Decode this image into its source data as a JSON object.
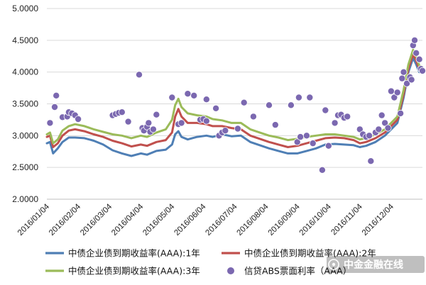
{
  "chart_data": {
    "type": "line",
    "title": "",
    "xlabel": "",
    "ylabel": "",
    "ylim": [
      2.0,
      5.0
    ],
    "y_ticks": [
      "2.0000",
      "2.5000",
      "3.0000",
      "3.5000",
      "4.0000",
      "4.5000",
      "5.0000"
    ],
    "x_ticks": [
      "2016/01/04",
      "2016/02/04",
      "2016/03/04",
      "2016/04/04",
      "2016/05/04",
      "2016/06/04",
      "2016/07/04",
      "2016/08/04",
      "2016/09/04",
      "2016/10/04",
      "2016/11/04",
      "2016/12/04"
    ],
    "x_domain": [
      0,
      12
    ],
    "grid": "horizontal",
    "legend_position": "bottom",
    "series": [
      {
        "name": "中债企业债到期收益率(AAA):1年",
        "type": "line",
        "color": "#4f7fb5",
        "points": [
          [
            0,
            2.88
          ],
          [
            0.1,
            2.9
          ],
          [
            0.2,
            2.72
          ],
          [
            0.35,
            2.8
          ],
          [
            0.5,
            2.9
          ],
          [
            0.7,
            2.97
          ],
          [
            0.9,
            2.97
          ],
          [
            1.2,
            2.96
          ],
          [
            1.5,
            2.92
          ],
          [
            1.8,
            2.86
          ],
          [
            2.1,
            2.77
          ],
          [
            2.4,
            2.72
          ],
          [
            2.7,
            2.68
          ],
          [
            3.0,
            2.72
          ],
          [
            3.2,
            2.7
          ],
          [
            3.5,
            2.76
          ],
          [
            3.8,
            2.78
          ],
          [
            4.0,
            2.86
          ],
          [
            4.1,
            3.02
          ],
          [
            4.2,
            3.07
          ],
          [
            4.3,
            2.98
          ],
          [
            4.5,
            2.94
          ],
          [
            4.8,
            2.98
          ],
          [
            5.1,
            3.0
          ],
          [
            5.3,
            2.98
          ],
          [
            5.6,
            3.02
          ],
          [
            5.9,
            2.99
          ],
          [
            6.2,
            3.0
          ],
          [
            6.5,
            2.9
          ],
          [
            6.8,
            2.85
          ],
          [
            7.1,
            2.8
          ],
          [
            7.4,
            2.76
          ],
          [
            7.7,
            2.72
          ],
          [
            8.0,
            2.72
          ],
          [
            8.3,
            2.76
          ],
          [
            8.6,
            2.8
          ],
          [
            8.9,
            2.86
          ],
          [
            9.2,
            2.87
          ],
          [
            9.5,
            2.86
          ],
          [
            9.8,
            2.85
          ],
          [
            10.0,
            2.82
          ],
          [
            10.2,
            2.84
          ],
          [
            10.5,
            2.9
          ],
          [
            10.8,
            3.0
          ],
          [
            11.0,
            3.1
          ],
          [
            11.2,
            3.2
          ],
          [
            11.4,
            3.6
          ],
          [
            11.55,
            4.0
          ],
          [
            11.7,
            4.22
          ],
          [
            11.8,
            4.12
          ],
          [
            11.9,
            4.0
          ],
          [
            12.0,
            4.02
          ]
        ]
      },
      {
        "name": "中债企业债到期收益率(AAA):2年",
        "type": "line",
        "color": "#c0504d",
        "points": [
          [
            0,
            2.98
          ],
          [
            0.1,
            3.0
          ],
          [
            0.2,
            2.82
          ],
          [
            0.35,
            2.88
          ],
          [
            0.5,
            3.0
          ],
          [
            0.7,
            3.08
          ],
          [
            0.9,
            3.1
          ],
          [
            1.2,
            3.07
          ],
          [
            1.5,
            3.02
          ],
          [
            1.8,
            2.98
          ],
          [
            2.1,
            2.92
          ],
          [
            2.4,
            2.88
          ],
          [
            2.7,
            2.83
          ],
          [
            3.0,
            2.86
          ],
          [
            3.2,
            2.84
          ],
          [
            3.5,
            2.9
          ],
          [
            3.8,
            2.93
          ],
          [
            4.0,
            3.05
          ],
          [
            4.1,
            3.3
          ],
          [
            4.2,
            3.42
          ],
          [
            4.3,
            3.3
          ],
          [
            4.5,
            3.2
          ],
          [
            4.8,
            3.2
          ],
          [
            5.1,
            3.18
          ],
          [
            5.3,
            3.15
          ],
          [
            5.6,
            3.15
          ],
          [
            5.9,
            3.12
          ],
          [
            6.2,
            3.1
          ],
          [
            6.5,
            3.0
          ],
          [
            6.8,
            2.95
          ],
          [
            7.1,
            2.9
          ],
          [
            7.4,
            2.86
          ],
          [
            7.7,
            2.82
          ],
          [
            8.0,
            2.84
          ],
          [
            8.3,
            2.88
          ],
          [
            8.6,
            2.92
          ],
          [
            8.9,
            2.96
          ],
          [
            9.2,
            2.97
          ],
          [
            9.5,
            2.96
          ],
          [
            9.8,
            2.93
          ],
          [
            10.0,
            2.88
          ],
          [
            10.2,
            2.9
          ],
          [
            10.5,
            2.96
          ],
          [
            10.8,
            3.05
          ],
          [
            11.0,
            3.15
          ],
          [
            11.2,
            3.25
          ],
          [
            11.4,
            3.65
          ],
          [
            11.55,
            4.05
          ],
          [
            11.7,
            4.28
          ],
          [
            11.8,
            4.18
          ],
          [
            11.9,
            4.05
          ],
          [
            12.0,
            4.05
          ]
        ]
      },
      {
        "name": "中债企业债到期收益率(AAA):3年",
        "type": "line",
        "color": "#9bbb59",
        "points": [
          [
            0,
            3.02
          ],
          [
            0.1,
            3.05
          ],
          [
            0.2,
            2.88
          ],
          [
            0.35,
            2.94
          ],
          [
            0.5,
            3.08
          ],
          [
            0.7,
            3.15
          ],
          [
            0.9,
            3.18
          ],
          [
            1.2,
            3.15
          ],
          [
            1.5,
            3.1
          ],
          [
            1.8,
            3.06
          ],
          [
            2.1,
            3.02
          ],
          [
            2.4,
            3.0
          ],
          [
            2.7,
            2.96
          ],
          [
            3.0,
            3.0
          ],
          [
            3.2,
            2.98
          ],
          [
            3.5,
            3.05
          ],
          [
            3.8,
            3.1
          ],
          [
            4.0,
            3.25
          ],
          [
            4.1,
            3.48
          ],
          [
            4.2,
            3.58
          ],
          [
            4.3,
            3.45
          ],
          [
            4.5,
            3.35
          ],
          [
            4.8,
            3.32
          ],
          [
            5.1,
            3.3
          ],
          [
            5.3,
            3.26
          ],
          [
            5.6,
            3.24
          ],
          [
            5.9,
            3.2
          ],
          [
            6.2,
            3.2
          ],
          [
            6.5,
            3.1
          ],
          [
            6.8,
            3.05
          ],
          [
            7.1,
            3.0
          ],
          [
            7.4,
            2.97
          ],
          [
            7.7,
            2.93
          ],
          [
            8.0,
            2.95
          ],
          [
            8.3,
            2.98
          ],
          [
            8.6,
            3.0
          ],
          [
            8.9,
            3.02
          ],
          [
            9.2,
            3.02
          ],
          [
            9.5,
            3.0
          ],
          [
            9.8,
            2.98
          ],
          [
            10.0,
            2.94
          ],
          [
            10.2,
            2.96
          ],
          [
            10.5,
            3.02
          ],
          [
            10.8,
            3.1
          ],
          [
            11.0,
            3.2
          ],
          [
            11.2,
            3.3
          ],
          [
            11.4,
            3.72
          ],
          [
            11.55,
            4.12
          ],
          [
            11.7,
            4.35
          ],
          [
            11.8,
            4.25
          ],
          [
            11.9,
            4.1
          ],
          [
            12.0,
            4.08
          ]
        ]
      },
      {
        "name": "信贷ABS票面利率（AAA）",
        "type": "scatter",
        "color": "#7b68b0",
        "points": [
          [
            0.1,
            3.2
          ],
          [
            0.25,
            3.45
          ],
          [
            0.3,
            3.63
          ],
          [
            0.5,
            3.29
          ],
          [
            0.65,
            3.3
          ],
          [
            0.7,
            3.37
          ],
          [
            0.8,
            3.35
          ],
          [
            0.9,
            3.32
          ],
          [
            1.0,
            3.26
          ],
          [
            2.1,
            3.32
          ],
          [
            2.2,
            3.34
          ],
          [
            2.3,
            3.36
          ],
          [
            2.4,
            3.37
          ],
          [
            2.6,
            3.22
          ],
          [
            2.95,
            3.96
          ],
          [
            3.05,
            3.12
          ],
          [
            3.1,
            3.08
          ],
          [
            3.2,
            3.14
          ],
          [
            3.25,
            3.2
          ],
          [
            3.3,
            3.06
          ],
          [
            3.4,
            3.1
          ],
          [
            3.5,
            3.33
          ],
          [
            4.0,
            3.6
          ],
          [
            4.2,
            3.18
          ],
          [
            4.3,
            3.2
          ],
          [
            4.5,
            3.66
          ],
          [
            4.7,
            3.63
          ],
          [
            4.9,
            3.25
          ],
          [
            5.0,
            3.26
          ],
          [
            5.1,
            3.23
          ],
          [
            5.1,
            3.57
          ],
          [
            5.4,
            3.43
          ],
          [
            5.5,
            3.0
          ],
          [
            5.6,
            3.05
          ],
          [
            5.7,
            3.08
          ],
          [
            6.1,
            3.11
          ],
          [
            6.3,
            3.52
          ],
          [
            6.6,
            3.3
          ],
          [
            7.1,
            3.48
          ],
          [
            7.3,
            3.17
          ],
          [
            7.8,
            3.48
          ],
          [
            8.0,
            2.9
          ],
          [
            8.05,
            3.6
          ],
          [
            8.1,
            2.98
          ],
          [
            8.3,
            3.0
          ],
          [
            8.4,
            3.6
          ],
          [
            8.5,
            2.88
          ],
          [
            8.8,
            2.46
          ],
          [
            8.9,
            3.4
          ],
          [
            9.0,
            2.84
          ],
          [
            9.2,
            3.2
          ],
          [
            9.3,
            3.32
          ],
          [
            9.4,
            3.33
          ],
          [
            9.5,
            3.28
          ],
          [
            9.6,
            3.3
          ],
          [
            10.0,
            3.1
          ],
          [
            10.1,
            3.02
          ],
          [
            10.2,
            2.98
          ],
          [
            10.3,
            3.0
          ],
          [
            10.35,
            2.6
          ],
          [
            10.5,
            3.05
          ],
          [
            10.6,
            3.1
          ],
          [
            10.7,
            3.32
          ],
          [
            10.8,
            3.2
          ],
          [
            10.9,
            3.12
          ],
          [
            11.0,
            3.7
          ],
          [
            11.1,
            3.6
          ],
          [
            11.2,
            3.68
          ],
          [
            11.3,
            3.35
          ],
          [
            11.35,
            3.9
          ],
          [
            11.4,
            4.0
          ],
          [
            11.5,
            3.82
          ],
          [
            11.6,
            3.92
          ],
          [
            11.65,
            3.88
          ],
          [
            11.7,
            4.42
          ],
          [
            11.75,
            4.5
          ],
          [
            11.8,
            4.3
          ],
          [
            11.9,
            4.2
          ],
          [
            11.95,
            4.05
          ],
          [
            12.0,
            4.02
          ]
        ]
      }
    ]
  },
  "watermark": {
    "text": "中金金融在线"
  }
}
